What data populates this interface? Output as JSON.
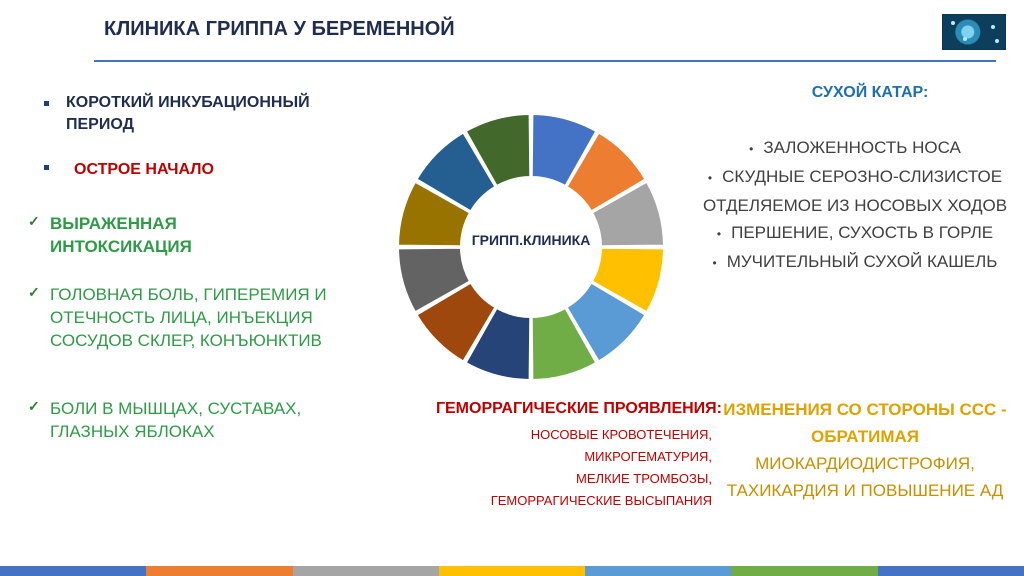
{
  "title": "КЛИНИКА ГРИППА У БЕРЕМЕННОЙ",
  "left": {
    "item1": "КОРОТКИЙ ИНКУБАЦИОННЫЙ ПЕРИОД",
    "item2": "ОСТРОЕ НАЧАЛО",
    "item3": "ВЫРАЖЕННАЯ ИНТОКСИКАЦИЯ",
    "item4": "ГОЛОВНАЯ БОЛЬ, ГИПЕРЕМИЯ И ОТЕЧНОСТЬ ЛИЦА, ИНЪЕКЦИЯ СОСУДОВ СКЛЕР, КОНЪЮНКТИВ",
    "item5": "БОЛИ В МЫШЦАХ, СУСТАВАХ, ГЛАЗНЫХ ЯБЛОКАХ"
  },
  "center": {
    "label": "ГРИПП.КЛИНИКА",
    "segment_colors": [
      "#4472c4",
      "#ed7d31",
      "#a5a5a5",
      "#ffc000",
      "#5b9bd5",
      "#70ad47",
      "#264478",
      "#9e480e",
      "#636363",
      "#997300",
      "#255e91",
      "#43682b"
    ]
  },
  "right": {
    "heading": "СУХОЙ КАТАР:",
    "items": [
      "ЗАЛОЖЕННОСТЬ НОСА",
      "СКУДНЫЕ СЕРОЗНО-СЛИЗИСТОЕ ОТДЕЛЯЕМОЕ ИЗ НОСОВЫХ ХОДОВ",
      "ПЕРШЕНИЕ, СУХОСТЬ В ГОРЛЕ",
      "МУЧИТЕЛЬНЫЙ СУХОЙ КАШЕЛЬ"
    ]
  },
  "hemorrhagic": {
    "heading": "ГЕМОРРАГИЧЕСКИЕ ПРОЯВЛЕНИЯ:",
    "line1": "НОСОВЫЕ КРОВОТЕЧЕНИЯ,",
    "line2": "МИКРОГЕМАТУРИЯ,",
    "line3": "МЕЛКИЕ ТРОМБОЗЫ,",
    "line4": "ГЕМОРРАГИЧЕСКИЕ ВЫСЫПАНИЯ"
  },
  "cardio": {
    "heading": "ИЗМЕНЕНИЯ СО СТОРОНЫ ССС - ОБРАТИМАЯ",
    "body": "МИОКАРДИОДИСТРОФИЯ, ТАХИКАРДИЯ И ПОВЫШЕНИЕ АД"
  },
  "footer_colors": [
    "#4472c4",
    "#ed7d31",
    "#a5a5a5",
    "#ffc000",
    "#5b9bd5",
    "#70ad47",
    "#4472c4"
  ]
}
